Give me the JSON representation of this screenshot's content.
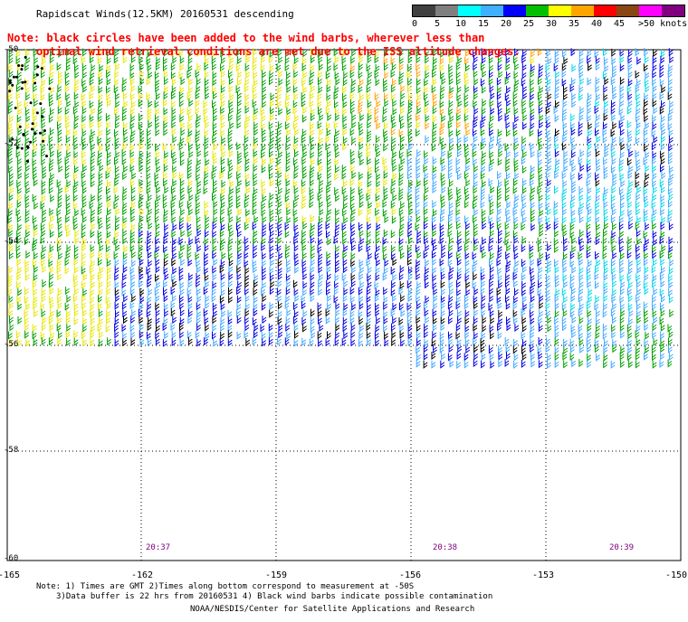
{
  "title": "Rapidscat Winds(12.5KM) 20160531 descending",
  "note_line1": "Note: black circles have been added to the wind barbs, wherever less than",
  "note_line2": "optimal wind retrieval conditions are met due to the ISS altitude changes.",
  "legend": {
    "labels": [
      "0",
      "5",
      "10",
      "15",
      "20",
      "25",
      "30",
      "35",
      "40",
      "45",
      ">50 knots"
    ],
    "colors": [
      "#404040",
      "#7f7f7f",
      "#00ffff",
      "#3fb0ff",
      "#0000ff",
      "#00c000",
      "#ffff00",
      "#ffa500",
      "#ff0000",
      "#8b4513",
      "#ff00ff",
      "#800080"
    ]
  },
  "lat_labels": [
    "-50",
    "-52",
    "-54",
    "-56",
    "-58",
    "-60"
  ],
  "lon_labels": [
    "-165",
    "-162",
    "-159",
    "-156",
    "-153",
    "-150"
  ],
  "time_labels": [
    "20:37",
    "20:38",
    "20:39"
  ],
  "footer": {
    "line1": "Note: 1) Times are GMT 2)Times along bottom correspond to measurement at -50S",
    "line2": "3)Data buffer is 22 hrs from 20160531 4) Black wind barbs indicate possible contamination",
    "line3": "NOAA/NESDIS/Center for Satellite Applications and Research"
  }
}
